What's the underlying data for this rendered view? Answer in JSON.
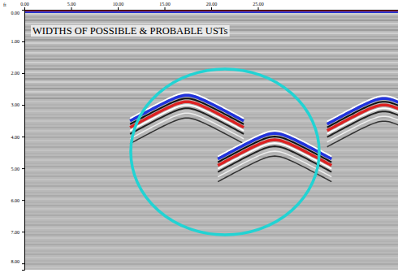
{
  "chart_data": {
    "type": "radargram",
    "annotation": "WIDTHS OF POSSIBLE & PROBABLE USTs",
    "y_label": "ft",
    "xlim": [
      0,
      40
    ],
    "xticks": [
      {
        "value": 0,
        "label": "0.00"
      },
      {
        "value": 5,
        "label": "5.00"
      },
      {
        "value": 10,
        "label": "10.00"
      },
      {
        "value": 15,
        "label": "15.00"
      },
      {
        "value": 20,
        "label": "20.00"
      },
      {
        "value": 25,
        "label": "25.00"
      }
    ],
    "ylim": [
      0,
      8.2
    ],
    "yticks": [
      {
        "value": 0,
        "label": "0.00"
      },
      {
        "value": 1,
        "label": "1.00"
      },
      {
        "value": 2,
        "label": "2.00"
      },
      {
        "value": 3,
        "label": "3.00"
      },
      {
        "value": 4,
        "label": "4.00"
      },
      {
        "value": 5,
        "label": "5.00"
      },
      {
        "value": 6,
        "label": "6.00"
      },
      {
        "value": 7,
        "label": "7.00"
      },
      {
        "value": 8,
        "label": "8.00"
      }
    ],
    "reflectors": {
      "x": [
        17.4,
        26.8,
        38.5
      ],
      "depth": [
        2.8,
        4.0,
        2.9
      ]
    }
  }
}
